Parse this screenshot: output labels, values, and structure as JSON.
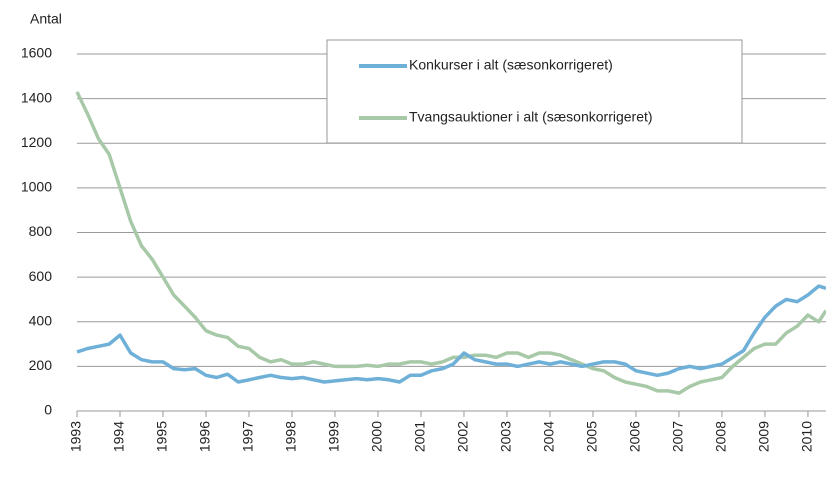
{
  "chart_data": {
    "type": "line",
    "ylabel": "Antal",
    "x": [
      1993,
      1993.25,
      1993.5,
      1993.75,
      1994,
      1994.25,
      1994.5,
      1994.75,
      1995,
      1995.25,
      1995.5,
      1995.75,
      1996,
      1996.25,
      1996.5,
      1996.75,
      1997,
      1997.25,
      1997.5,
      1997.75,
      1998,
      1998.25,
      1998.5,
      1998.75,
      1999,
      1999.25,
      1999.5,
      1999.75,
      2000,
      2000.25,
      2000.5,
      2000.75,
      2001,
      2001.25,
      2001.5,
      2001.75,
      2002,
      2002.25,
      2002.5,
      2002.75,
      2003,
      2003.25,
      2003.5,
      2003.75,
      2004,
      2004.25,
      2004.5,
      2004.75,
      2005,
      2005.25,
      2005.5,
      2005.75,
      2006,
      2006.25,
      2006.5,
      2006.75,
      2007,
      2007.25,
      2007.5,
      2007.75,
      2008,
      2008.25,
      2008.5,
      2008.75,
      2009,
      2009.25,
      2009.5,
      2009.75,
      2010,
      2010.25,
      2010.42
    ],
    "series": [
      {
        "name": "Konkurser i alt (sæsonkorrigeret)",
        "color": "#6fb0d8",
        "values": [
          265,
          280,
          290,
          300,
          340,
          260,
          230,
          220,
          220,
          190,
          185,
          190,
          160,
          150,
          165,
          130,
          140,
          150,
          160,
          150,
          145,
          150,
          140,
          130,
          135,
          140,
          145,
          140,
          145,
          140,
          130,
          160,
          160,
          180,
          190,
          210,
          260,
          230,
          220,
          210,
          210,
          200,
          210,
          220,
          210,
          220,
          210,
          200,
          210,
          220,
          220,
          210,
          180,
          170,
          160,
          170,
          190,
          200,
          190,
          200,
          210,
          240,
          270,
          350,
          420,
          470,
          500,
          490,
          520,
          560,
          550
        ]
      },
      {
        "name": "Tvangsauktioner i alt (sæsonkorrigeret)",
        "color": "#a8c9a8",
        "values": [
          1430,
          1330,
          1220,
          1150,
          1000,
          850,
          740,
          680,
          600,
          520,
          470,
          420,
          360,
          340,
          330,
          290,
          280,
          240,
          220,
          230,
          210,
          210,
          220,
          210,
          200,
          200,
          200,
          205,
          200,
          210,
          210,
          220,
          220,
          210,
          220,
          240,
          240,
          250,
          250,
          240,
          260,
          260,
          240,
          260,
          260,
          250,
          230,
          210,
          190,
          180,
          150,
          130,
          120,
          110,
          90,
          90,
          80,
          110,
          130,
          140,
          150,
          200,
          240,
          280,
          300,
          300,
          350,
          380,
          430,
          400,
          450
        ]
      }
    ],
    "xlim": [
      1993,
      2010.42
    ],
    "xticks": [
      1993,
      1994,
      1995,
      1996,
      1997,
      1998,
      1999,
      2000,
      2001,
      2002,
      2003,
      2004,
      2005,
      2006,
      2007,
      2008,
      2009,
      2010
    ],
    "ylim": [
      0,
      1600
    ],
    "yticks": [
      0,
      200,
      400,
      600,
      800,
      1000,
      1200,
      1400,
      1600
    ],
    "grid": true,
    "legend": "top"
  }
}
